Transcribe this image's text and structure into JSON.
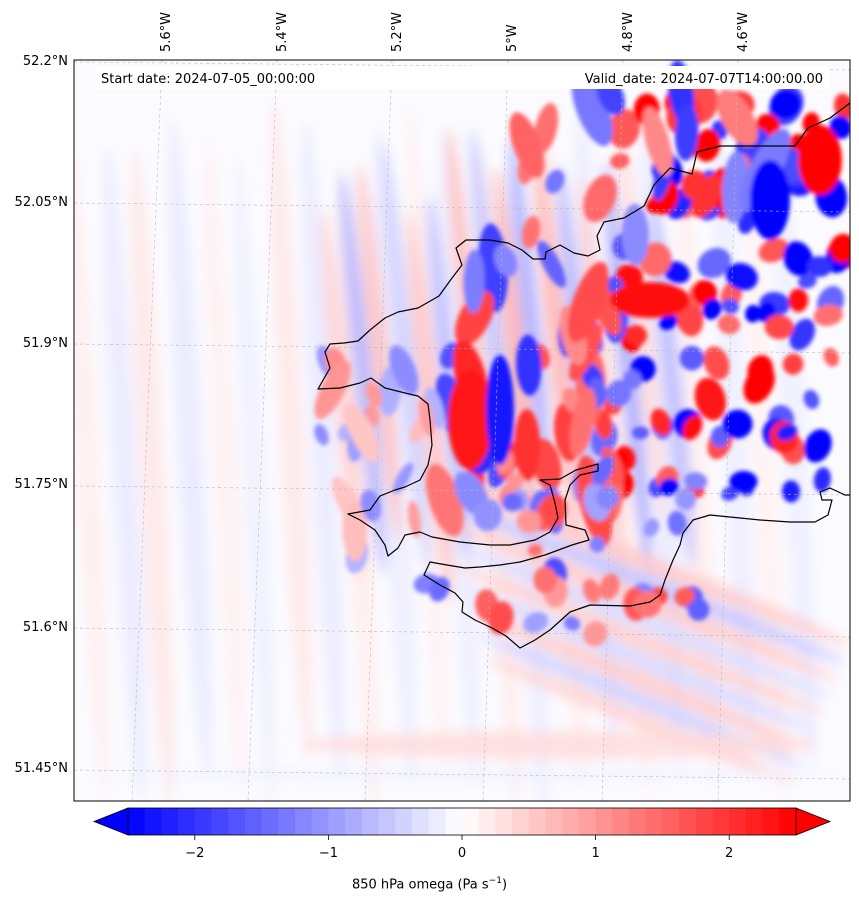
{
  "header": {
    "start_date": "Start date: 2024-07-05_00:00:00",
    "valid_date": "Valid_date: 2024-07-07T14:00:00.00"
  },
  "axes": {
    "lon_labels": [
      "5.6°W",
      "5.4°W",
      "5.2°W",
      "5°W",
      "4.8°W",
      "4.6°W"
    ],
    "lat_labels": [
      "52.2°N",
      "52.05°N",
      "51.9°N",
      "51.75°N",
      "51.6°N",
      "51.45°N"
    ],
    "gridlines": true
  },
  "colorbar": {
    "label": "850 hPa omega",
    "unit_base": "(Pa s",
    "unit_exp": "−1",
    "unit_close": ")",
    "ticks": [
      "−2",
      "−1",
      "0",
      "1",
      "2"
    ],
    "tick_values": [
      -2,
      -1,
      0,
      1,
      2
    ],
    "range": [
      -2.5,
      2.5
    ],
    "extend": "both",
    "colormap": "bwr",
    "colors": {
      "negative": "#0000ff",
      "zero": "#ffffff",
      "positive": "#ff0000"
    }
  },
  "map": {
    "field": "850 hPa omega",
    "coastline_color": "#000000",
    "projection": "lambert-conformal"
  }
}
